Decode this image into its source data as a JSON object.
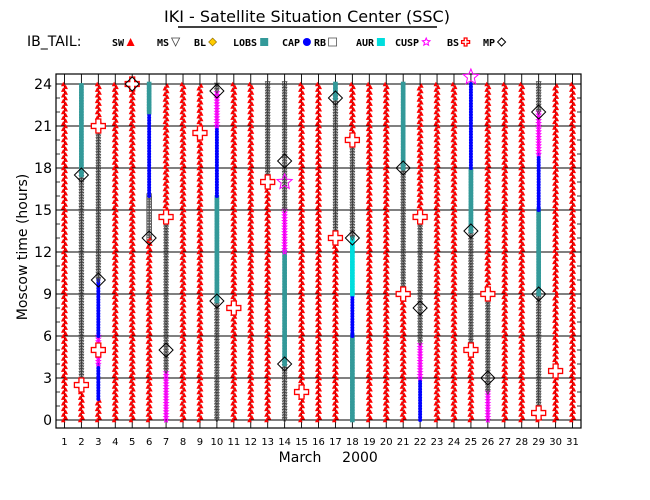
{
  "chart_data": {
    "type": "scatter",
    "title": "IKI - Satellite Situation Center (SSC)",
    "xlabel": "March",
    "xlabel_year": "2000",
    "ylabel": "Moscow time (hours)",
    "xlim": [
      1,
      31
    ],
    "ylim": [
      0,
      24
    ],
    "x_ticks": [
      1,
      2,
      3,
      4,
      5,
      6,
      7,
      8,
      9,
      10,
      11,
      12,
      13,
      14,
      15,
      16,
      17,
      18,
      19,
      20,
      21,
      22,
      23,
      24,
      25,
      26,
      27,
      28,
      29,
      30,
      31
    ],
    "y_ticks": [
      0,
      3,
      6,
      9,
      12,
      15,
      18,
      21,
      24
    ],
    "grid": true,
    "legend_title": "IB_TAIL:",
    "legend": [
      {
        "key": "SW",
        "label": "SW",
        "marker": "triangle-filled",
        "color": "#ff0000"
      },
      {
        "key": "MS",
        "label": "MS",
        "marker": "triangle-open",
        "color": "#444444"
      },
      {
        "key": "BL",
        "label": "BL",
        "marker": "diamond-filled",
        "color": "#ffcc00"
      },
      {
        "key": "LOBS",
        "label": "LOBS",
        "marker": "square-filled",
        "color": "#339999"
      },
      {
        "key": "CAP",
        "label": "CAP",
        "marker": "circle-filled",
        "color": "#0000ff"
      },
      {
        "key": "RB",
        "label": "RB",
        "marker": "square-open",
        "color": "#555555"
      },
      {
        "key": "AUR",
        "label": "AUR",
        "marker": "square-filled",
        "color": "#00dddd"
      },
      {
        "key": "CUSP",
        "label": "CUSP",
        "marker": "star-open",
        "color": "#ff00ff"
      },
      {
        "key": "BS",
        "label": "BS",
        "marker": "cross-open",
        "color": "#ff0000"
      },
      {
        "key": "MP",
        "label": "MP",
        "marker": "diamond-open",
        "color": "#000000"
      }
    ],
    "columns": [
      {
        "day": 1,
        "segments": [
          [
            "SW",
            0,
            24
          ]
        ]
      },
      {
        "day": 2,
        "segments": [
          [
            "SW",
            0,
            2.5
          ],
          [
            "MS",
            2.5,
            17.5
          ],
          [
            "LOBS",
            17.5,
            24
          ]
        ],
        "events": [
          [
            "BS",
            2.5
          ],
          [
            "MP",
            17.5
          ]
        ]
      },
      {
        "day": 3,
        "segments": [
          [
            "SW",
            0,
            1.5
          ],
          [
            "CAP",
            1.5,
            4
          ],
          [
            "CUSP",
            4,
            6
          ],
          [
            "CAP",
            6,
            10
          ],
          [
            "MS",
            10,
            21
          ],
          [
            "SW",
            21,
            24
          ]
        ],
        "events": [
          [
            "MP",
            10
          ],
          [
            "BS",
            21
          ],
          [
            "BS",
            5
          ]
        ]
      },
      {
        "day": 4,
        "segments": [
          [
            "SW",
            0,
            24
          ]
        ]
      },
      {
        "day": 5,
        "segments": [
          [
            "SW",
            0,
            24
          ]
        ],
        "events": [
          [
            "BS",
            24
          ],
          [
            "MP",
            24
          ]
        ]
      },
      {
        "day": 6,
        "segments": [
          [
            "SW",
            0,
            13
          ],
          [
            "RB",
            13,
            16
          ],
          [
            "CAP",
            16,
            22
          ],
          [
            "LOBS",
            22,
            24
          ]
        ],
        "events": [
          [
            "MP",
            13
          ]
        ]
      },
      {
        "day": 7,
        "segments": [
          [
            "CUSP",
            0,
            3.5
          ],
          [
            "MS",
            3.5,
            14.5
          ],
          [
            "SW",
            14.5,
            24
          ]
        ],
        "events": [
          [
            "MP",
            5
          ],
          [
            "BS",
            14.5
          ]
        ]
      },
      {
        "day": 8,
        "segments": [
          [
            "SW",
            0,
            24
          ]
        ]
      },
      {
        "day": 9,
        "segments": [
          [
            "SW",
            0,
            20.5
          ],
          [
            "SW",
            20.5,
            24
          ]
        ],
        "events": [
          [
            "BS",
            20.5
          ]
        ]
      },
      {
        "day": 10,
        "segments": [
          [
            "MS",
            0,
            8.5
          ],
          [
            "LOBS",
            8.5,
            16
          ],
          [
            "CAP",
            16,
            21
          ],
          [
            "CUSP",
            21,
            23.5
          ],
          [
            "MS",
            23.5,
            24
          ]
        ],
        "events": [
          [
            "MP",
            8.5
          ],
          [
            "MP",
            23.5
          ]
        ]
      },
      {
        "day": 11,
        "segments": [
          [
            "SW",
            0,
            8
          ],
          [
            "SW",
            8,
            24
          ]
        ],
        "events": [
          [
            "BS",
            8
          ]
        ]
      },
      {
        "day": 12,
        "segments": [
          [
            "SW",
            0,
            24
          ]
        ]
      },
      {
        "day": 13,
        "segments": [
          [
            "SW",
            0,
            17
          ],
          [
            "MS",
            17,
            24
          ]
        ],
        "events": [
          [
            "BS",
            17
          ]
        ]
      },
      {
        "day": 14,
        "segments": [
          [
            "MS",
            0,
            4
          ],
          [
            "LOBS",
            4,
            12
          ],
          [
            "CUSP",
            12,
            15
          ],
          [
            "MS",
            15,
            24
          ]
        ],
        "events": [
          [
            "MP",
            4
          ],
          [
            "MP",
            18.5
          ],
          [
            "CUSP",
            17
          ]
        ]
      },
      {
        "day": 15,
        "segments": [
          [
            "SW",
            0,
            2
          ],
          [
            "SW",
            2,
            24
          ]
        ],
        "events": [
          [
            "BS",
            2
          ]
        ]
      },
      {
        "day": 16,
        "segments": [
          [
            "SW",
            0,
            24
          ]
        ]
      },
      {
        "day": 17,
        "segments": [
          [
            "SW",
            0,
            13
          ],
          [
            "MS",
            13,
            23
          ],
          [
            "LOBS",
            23,
            24
          ]
        ],
        "events": [
          [
            "BS",
            13
          ],
          [
            "MP",
            23
          ]
        ]
      },
      {
        "day": 18,
        "segments": [
          [
            "LOBS",
            0,
            6
          ],
          [
            "CAP",
            6,
            9
          ],
          [
            "AUR",
            9,
            13
          ],
          [
            "MS",
            13,
            20
          ],
          [
            "SW",
            20,
            24
          ]
        ],
        "events": [
          [
            "MP",
            13
          ],
          [
            "BS",
            20
          ]
        ]
      },
      {
        "day": 19,
        "segments": [
          [
            "SW",
            0,
            24
          ]
        ]
      },
      {
        "day": 20,
        "segments": [
          [
            "SW",
            0,
            24
          ]
        ]
      },
      {
        "day": 21,
        "segments": [
          [
            "SW",
            0,
            9
          ],
          [
            "MS",
            9,
            18
          ],
          [
            "LOBS",
            18,
            24
          ]
        ],
        "events": [
          [
            "BS",
            9
          ],
          [
            "MP",
            18
          ]
        ]
      },
      {
        "day": 22,
        "segments": [
          [
            "CAP",
            0,
            3
          ],
          [
            "CUSP",
            3,
            5.5
          ],
          [
            "MS",
            5.5,
            14.5
          ],
          [
            "SW",
            14.5,
            24
          ]
        ],
        "events": [
          [
            "MP",
            8
          ],
          [
            "BS",
            14.5
          ]
        ]
      },
      {
        "day": 23,
        "segments": [
          [
            "SW",
            0,
            24
          ]
        ]
      },
      {
        "day": 24,
        "segments": [
          [
            "SW",
            0,
            24
          ]
        ]
      },
      {
        "day": 25,
        "segments": [
          [
            "SW",
            0,
            5
          ],
          [
            "MS",
            5,
            13.5
          ],
          [
            "LOBS",
            13.5,
            18
          ],
          [
            "CAP",
            18,
            24
          ]
        ],
        "events": [
          [
            "BS",
            5
          ],
          [
            "MP",
            13.5
          ],
          [
            "CUSP",
            24.5
          ]
        ]
      },
      {
        "day": 26,
        "segments": [
          [
            "CUSP",
            0,
            2
          ],
          [
            "MS",
            2,
            9
          ],
          [
            "SW",
            9,
            24
          ]
        ],
        "events": [
          [
            "MP",
            3
          ],
          [
            "BS",
            9
          ]
        ]
      },
      {
        "day": 27,
        "segments": [
          [
            "SW",
            0,
            24
          ]
        ]
      },
      {
        "day": 28,
        "segments": [
          [
            "SW",
            0,
            24
          ]
        ]
      },
      {
        "day": 29,
        "segments": [
          [
            "SW",
            0,
            0.5
          ],
          [
            "MS",
            0.5,
            9
          ],
          [
            "LOBS",
            9,
            15
          ],
          [
            "CAP",
            15,
            19
          ],
          [
            "CUSP",
            19,
            22
          ],
          [
            "MS",
            22,
            24
          ]
        ],
        "events": [
          [
            "BS",
            0.5
          ],
          [
            "MP",
            9
          ],
          [
            "MP",
            22
          ]
        ]
      },
      {
        "day": 30,
        "segments": [
          [
            "SW",
            0,
            3.5
          ],
          [
            "SW",
            3.5,
            24
          ]
        ],
        "events": [
          [
            "BS",
            3.5
          ]
        ]
      },
      {
        "day": 31,
        "segments": [
          [
            "SW",
            0,
            24
          ]
        ]
      }
    ]
  }
}
